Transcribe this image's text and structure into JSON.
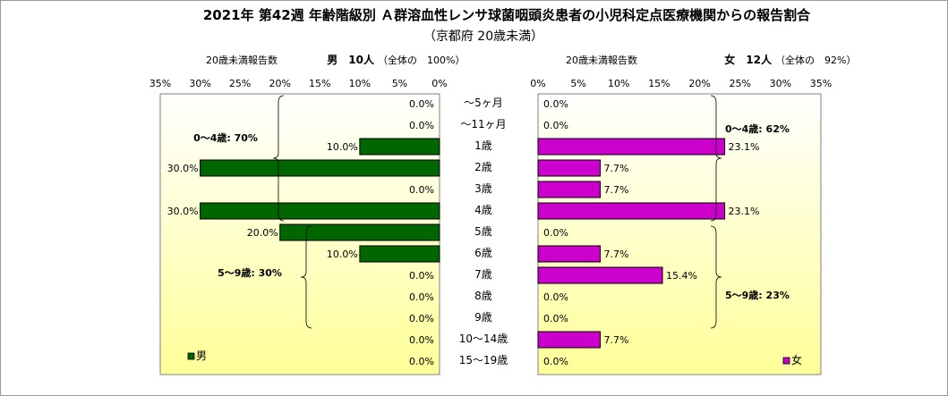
{
  "chart_data": {
    "type": "bar",
    "title": "2021年 第42週 年齢階級別 Ａ群溶血性レンサ球菌咽頭炎患者の小児科定点医療機関からの報告割合",
    "subtitle": "（京都府 20歳未満）",
    "categories": [
      "～5ヶ月",
      "～11ヶ月",
      "1歳",
      "2歳",
      "3歳",
      "4歳",
      "5歳",
      "6歳",
      "7歳",
      "8歳",
      "9歳",
      "10～14歳",
      "15～19歳"
    ],
    "xlim": [
      0,
      35
    ],
    "x_ticks": [
      "0%",
      "5%",
      "10%",
      "15%",
      "20%",
      "25%",
      "30%",
      "35%"
    ],
    "series": [
      {
        "name": "男",
        "side": "left",
        "color": "#006600",
        "axis_label": "20歳未満報告数",
        "total_label": "男　10人",
        "share_label": "（全体の　100%）",
        "values": [
          0.0,
          0.0,
          10.0,
          30.0,
          0.0,
          30.0,
          20.0,
          10.0,
          0.0,
          0.0,
          0.0,
          0.0,
          0.0
        ],
        "value_labels": [
          "0.0%",
          "0.0%",
          "10.0%",
          "30.0%",
          "0.0%",
          "30.0%",
          "20.0%",
          "10.0%",
          "0.0%",
          "0.0%",
          "0.0%",
          "0.0%",
          "0.0%"
        ],
        "group_annotations": [
          "0～4歳: 70%",
          "5～9歳: 30%"
        ]
      },
      {
        "name": "女",
        "side": "right",
        "color": "#cc00cc",
        "axis_label": "20歳未満報告数",
        "total_label": "女　12人",
        "share_label": "（全体の　92%）",
        "values": [
          0.0,
          0.0,
          23.1,
          7.7,
          7.7,
          23.1,
          0.0,
          7.7,
          15.4,
          0.0,
          0.0,
          7.7,
          0.0
        ],
        "value_labels": [
          "0.0%",
          "0.0%",
          "23.1%",
          "7.7%",
          "7.7%",
          "23.1%",
          "0.0%",
          "7.7%",
          "15.4%",
          "0.0%",
          "0.0%",
          "7.7%",
          "0.0%"
        ],
        "group_annotations": [
          "0～4歳: 62%",
          "5～9歳: 23%"
        ]
      }
    ],
    "colors": {
      "plot_gradient_top": "#ffffff",
      "plot_gradient_bottom": "#ffff99"
    }
  }
}
